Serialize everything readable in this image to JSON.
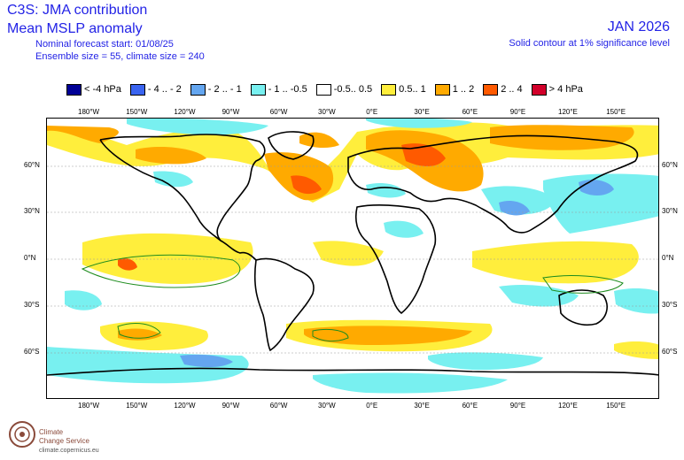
{
  "header": {
    "title": "C3S: JMA contribution",
    "variable": "Mean MSLP anomaly",
    "forecast_start": "Nominal forecast start: 01/08/25",
    "ensemble": "Ensemble size = 55, climate size = 240",
    "month": "JAN 2026",
    "note": "Solid contour at 1% significance level"
  },
  "legend": [
    {
      "label": "< -4 hPa",
      "color": "#000096"
    },
    {
      "label": "- 4 .. - 2",
      "color": "#3a64f0"
    },
    {
      "label": "- 2 .. - 1",
      "color": "#64a6f0"
    },
    {
      "label": "- 1 .. -0.5",
      "color": "#78f0f0"
    },
    {
      "label": "-0.5.. 0.5",
      "color": "#ffffff"
    },
    {
      "label": "0.5.. 1",
      "color": "#ffee3c"
    },
    {
      "label": "1 .. 2",
      "color": "#ffaa00"
    },
    {
      "label": "2 .. 4",
      "color": "#ff5a00"
    },
    {
      "label": "> 4 hPa",
      "color": "#d2002a"
    }
  ],
  "lon_ticks": [
    "180°W",
    "150°W",
    "120°W",
    "90°W",
    "60°W",
    "30°W",
    "0°E",
    "30°E",
    "60°E",
    "90°E",
    "120°E",
    "150°E"
  ],
  "lat_ticks": [
    "60°N",
    "30°N",
    "0°N",
    "30°S",
    "60°S"
  ],
  "logo": {
    "name_line1": "Climate",
    "name_line2": "Change Service",
    "url": "climate.copernicus.eu"
  }
}
